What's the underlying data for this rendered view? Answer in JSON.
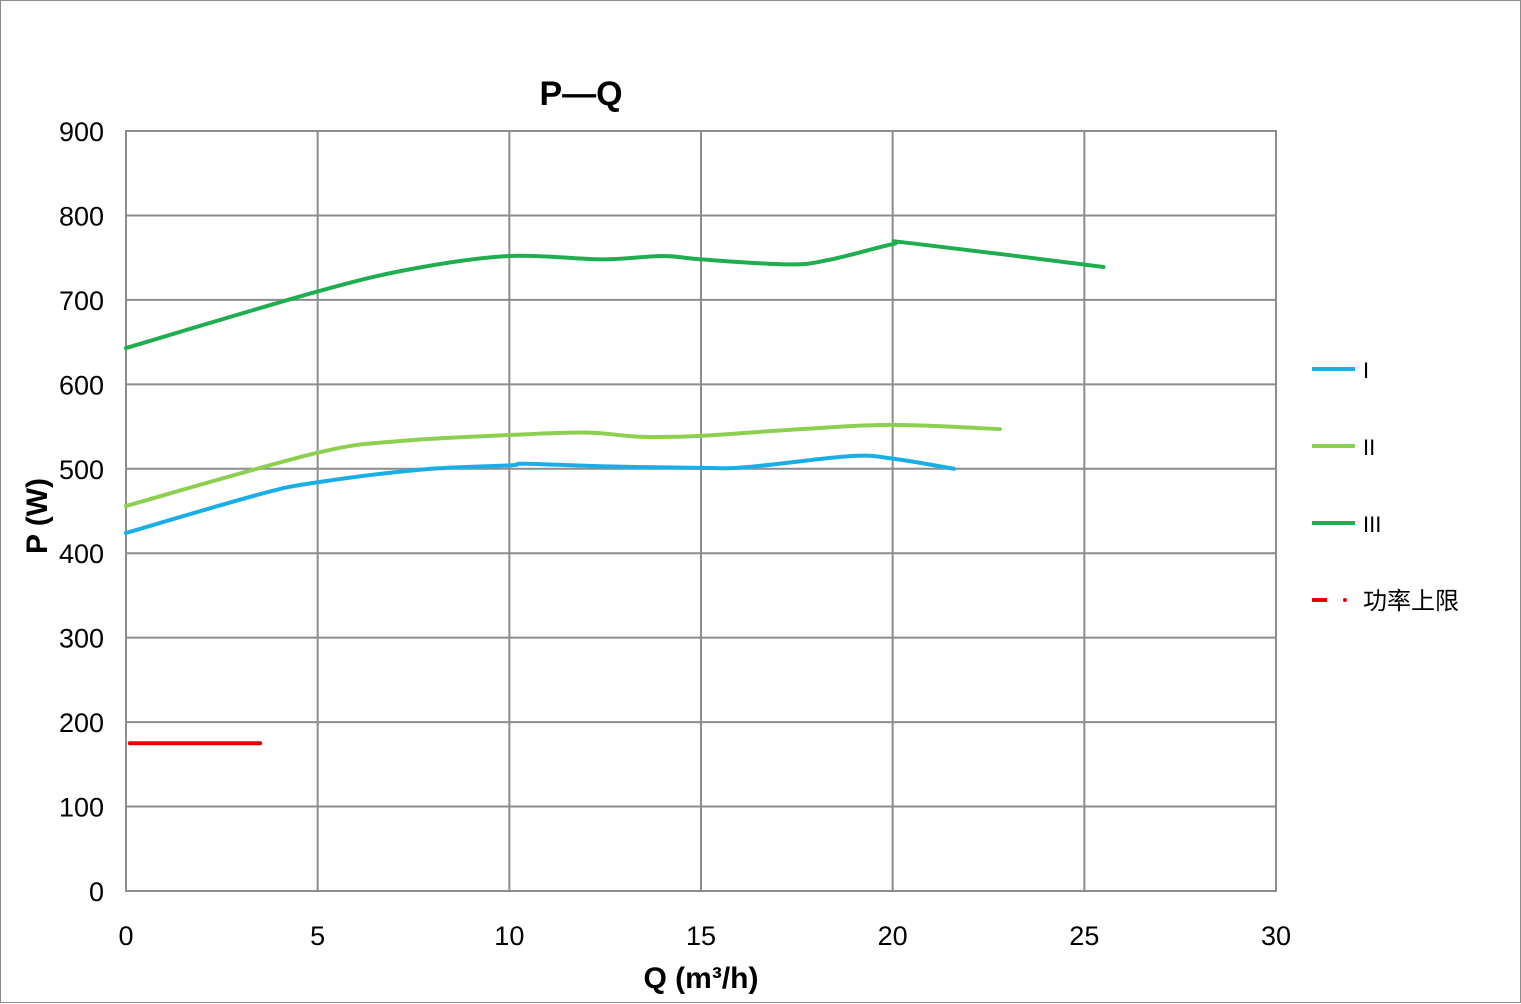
{
  "chart_data": {
    "type": "line",
    "title": "P—Q",
    "xlabel": "Q (m³/h)",
    "ylabel": "P (W)",
    "xlim": [
      0,
      30
    ],
    "ylim": [
      0,
      900
    ],
    "xticks": [
      0,
      5,
      10,
      15,
      20,
      25,
      30
    ],
    "yticks": [
      0,
      100,
      200,
      300,
      400,
      500,
      600,
      700,
      800,
      900
    ],
    "grid": true,
    "legend_position": "right",
    "series": [
      {
        "name": "I",
        "color": "#1aaee6",
        "dash": false,
        "x": [
          0,
          3.5,
          5,
          7.7,
          10,
          10.4,
          12.4,
          15,
          16.2,
          18.9,
          20,
          21.6
        ],
        "y": [
          424,
          470,
          484,
          499,
          504,
          506,
          503,
          501,
          502,
          515,
          512,
          500
        ]
      },
      {
        "name": "II",
        "color": "#8dcf50",
        "dash": false,
        "x": [
          0,
          5,
          7.2,
          10,
          12,
          13.4,
          15,
          17.6,
          20,
          22.8
        ],
        "y": [
          456,
          519,
          533,
          540,
          543,
          538,
          539,
          547,
          552,
          547
        ]
      },
      {
        "name": "III",
        "color": "#1fae4f",
        "dash": false,
        "x": [
          0,
          5,
          7.5,
          10,
          12.4,
          14,
          15,
          17.3,
          18.4,
          20,
          20.5,
          25.5
        ],
        "y": [
          643,
          710,
          737,
          752,
          748,
          752,
          748,
          742,
          748,
          766,
          767,
          739
        ]
      },
      {
        "name": "功率上限",
        "color": "#e60000",
        "dash": true,
        "x": [
          0.1,
          3.5
        ],
        "y": [
          175,
          175
        ]
      }
    ]
  }
}
